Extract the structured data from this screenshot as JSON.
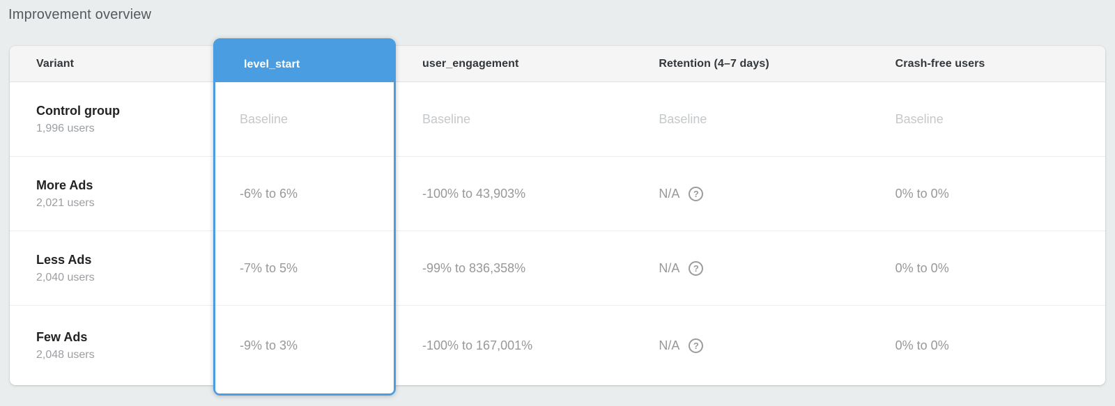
{
  "page": {
    "title": "Improvement overview"
  },
  "colors": {
    "accent_blue": "#4a9de0",
    "header_row_bg": "#f5f5f6",
    "page_bg": "#e9edee"
  },
  "icons": {
    "help_glyph": "?"
  },
  "table": {
    "columns": [
      {
        "id": "variant",
        "label": "Variant",
        "selected": false
      },
      {
        "id": "level_start",
        "label": "level_start",
        "selected": true
      },
      {
        "id": "user_engagement",
        "label": "user_engagement",
        "selected": false
      },
      {
        "id": "retention",
        "label": "Retention (4–7 days)",
        "selected": false
      },
      {
        "id": "crash_free",
        "label": "Crash-free users",
        "selected": false
      }
    ],
    "rows": [
      {
        "variant": "Control group",
        "users": "1,996 users",
        "level_start": "Baseline",
        "user_engagement": "Baseline",
        "retention": "Baseline",
        "retention_help": false,
        "crash_free": "Baseline"
      },
      {
        "variant": "More Ads",
        "users": "2,021 users",
        "level_start": "-6% to 6%",
        "user_engagement": "-100% to 43,903%",
        "retention": "N/A",
        "retention_help": true,
        "crash_free": "0% to 0%"
      },
      {
        "variant": "Less Ads",
        "users": "2,040 users",
        "level_start": "-7% to 5%",
        "user_engagement": "-99% to 836,358%",
        "retention": "N/A",
        "retention_help": true,
        "crash_free": "0% to 0%"
      },
      {
        "variant": "Few Ads",
        "users": "2,048 users",
        "level_start": "-9% to 3%",
        "user_engagement": "-100% to 167,001%",
        "retention": "N/A",
        "retention_help": true,
        "crash_free": "0% to 0%"
      }
    ]
  }
}
